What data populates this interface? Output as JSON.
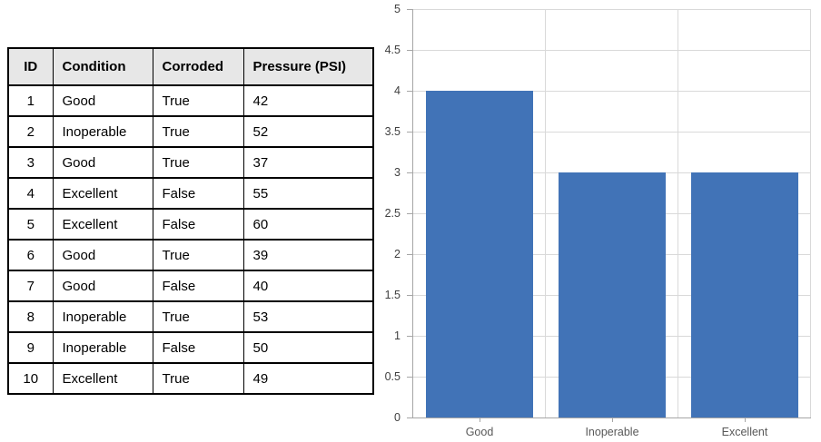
{
  "table": {
    "headers": [
      "ID",
      "Condition",
      "Corroded",
      "Pressure (PSI)"
    ],
    "rows": [
      [
        "1",
        "Good",
        "True",
        "42"
      ],
      [
        "2",
        "Inoperable",
        "True",
        "52"
      ],
      [
        "3",
        "Good",
        "True",
        "37"
      ],
      [
        "4",
        "Excellent",
        "False",
        "55"
      ],
      [
        "5",
        "Excellent",
        "False",
        "60"
      ],
      [
        "6",
        "Good",
        "True",
        "39"
      ],
      [
        "7",
        "Good",
        "False",
        "40"
      ],
      [
        "8",
        "Inoperable",
        "True",
        "53"
      ],
      [
        "9",
        "Inoperable",
        "False",
        "50"
      ],
      [
        "10",
        "Excellent",
        "True",
        "49"
      ]
    ]
  },
  "chart_data": {
    "type": "bar",
    "categories": [
      "Good",
      "Inoperable",
      "Excellent"
    ],
    "values": [
      4,
      3,
      3
    ],
    "title": "",
    "xlabel": "",
    "ylabel": "",
    "ylim": [
      0,
      5
    ],
    "ytick_step": 0.5,
    "ytick_labels": [
      "0",
      "0.5",
      "1",
      "1.5",
      "2",
      "2.5",
      "3",
      "3.5",
      "4",
      "4.5",
      "5"
    ],
    "grid": true,
    "legend_position": "none",
    "colors": {
      "bar": "#4173b7",
      "gridline": "#d9d9d9",
      "axis": "#a6a6a6",
      "y_tick_label": "#404040",
      "x_axis_label": "#595959",
      "table_header_bg": "#e7e7e7",
      "table_border": "#000000"
    }
  }
}
